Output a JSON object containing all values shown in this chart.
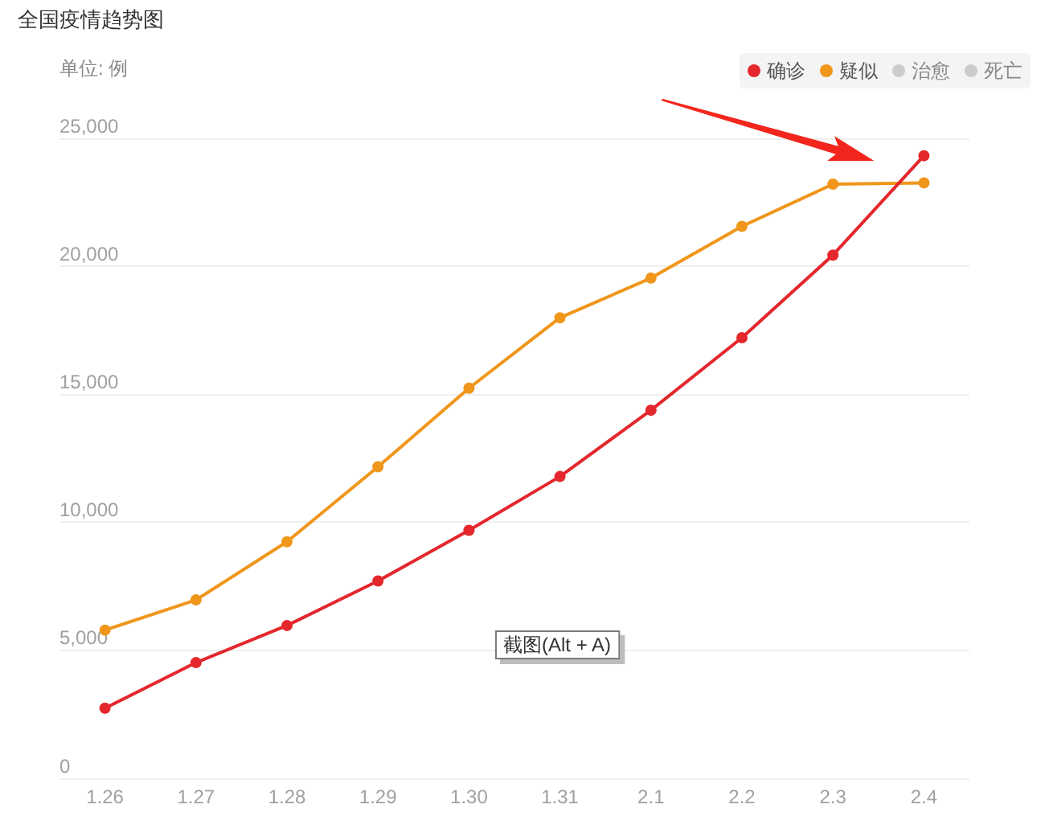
{
  "chart_data": {
    "type": "line",
    "title": "全国疫情趋势图",
    "ylabel": "单位: 例",
    "categories": [
      "1.26",
      "1.27",
      "1.28",
      "1.29",
      "1.30",
      "1.31",
      "2.1",
      "2.2",
      "2.3",
      "2.4"
    ],
    "series": [
      {
        "name": "确诊",
        "color": "#e3272d",
        "values": [
          2740,
          4520,
          5970,
          7710,
          9690,
          11790,
          14380,
          17210,
          20440,
          24320
        ]
      },
      {
        "name": "疑似",
        "color": "#ef961b",
        "values": [
          5790,
          6970,
          9240,
          12170,
          15240,
          17990,
          19540,
          21560,
          23210,
          23260
        ]
      },
      {
        "name": "治愈",
        "color": "#cccccc",
        "values": [
          null,
          null,
          null,
          null,
          null,
          null,
          null,
          null,
          null,
          null
        ]
      },
      {
        "name": "死亡",
        "color": "#cccccc",
        "values": [
          null,
          null,
          null,
          null,
          null,
          null,
          null,
          null,
          null,
          null
        ]
      }
    ],
    "ylim": [
      0,
      25000
    ],
    "yticks": [
      0,
      {
        "value": 5000,
        "label": "5,000"
      },
      {
        "value": 10000,
        "label": "10,000"
      },
      {
        "value": 15000,
        "label": "15,000"
      },
      {
        "value": 20000,
        "label": "20,000"
      },
      {
        "value": 25000,
        "label": "25,000"
      }
    ],
    "grid": "y",
    "legend": "top right",
    "marker": "circle",
    "line_style": "solid",
    "annotations": [
      "截图(Alt + A)"
    ]
  }
}
